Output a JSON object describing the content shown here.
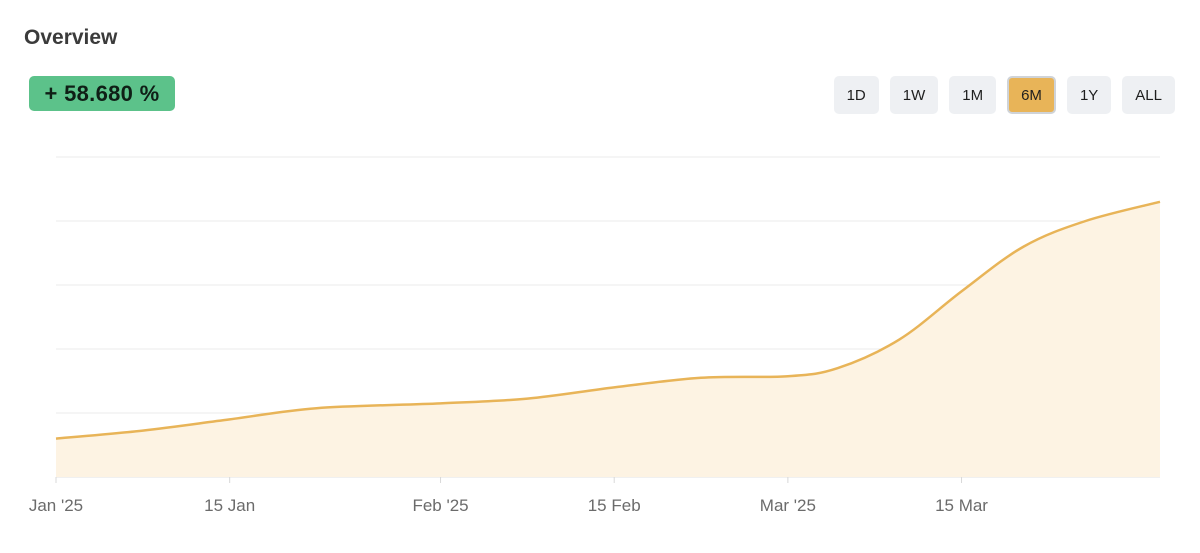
{
  "header": {
    "title": "Overview"
  },
  "change_badge": {
    "text": "+ 58.680 %"
  },
  "ranges": [
    {
      "label": "1D",
      "active": false
    },
    {
      "label": "1W",
      "active": false
    },
    {
      "label": "1M",
      "active": false
    },
    {
      "label": "6M",
      "active": true
    },
    {
      "label": "1Y",
      "active": false
    },
    {
      "label": "ALL",
      "active": false
    }
  ],
  "colors": {
    "line": "#e8b458",
    "area": "#fdf3e3",
    "grid": "#ebebeb",
    "badge": "#5cc28a",
    "active_range": "#e8b458"
  },
  "chart_data": {
    "type": "area",
    "title": "",
    "xlabel": "",
    "ylabel": "",
    "grid": true,
    "legend": "none",
    "x_ticks": [
      "Jan '25",
      "15 Jan",
      "Feb '25",
      "15 Feb",
      "Mar '25",
      "15 Mar"
    ],
    "x_tick_dates": [
      "2025-01-01",
      "2025-01-15",
      "2025-02-01",
      "2025-02-15",
      "2025-03-01",
      "2025-03-15"
    ],
    "xlim": [
      "2025-01-01",
      "2025-03-31"
    ],
    "ylim": [
      0,
      100
    ],
    "series": [
      {
        "x": [
          "2025-01-01",
          "2025-01-08",
          "2025-01-15",
          "2025-01-22",
          "2025-02-01",
          "2025-02-08",
          "2025-02-15",
          "2025-02-22",
          "2025-03-01",
          "2025-03-05",
          "2025-03-10",
          "2025-03-15",
          "2025-03-20",
          "2025-03-25",
          "2025-03-31"
        ],
        "values": [
          12,
          14.5,
          18,
          21.5,
          23,
          24.5,
          28,
          31,
          31.5,
          34,
          43,
          58,
          72,
          80,
          86
        ]
      }
    ]
  }
}
